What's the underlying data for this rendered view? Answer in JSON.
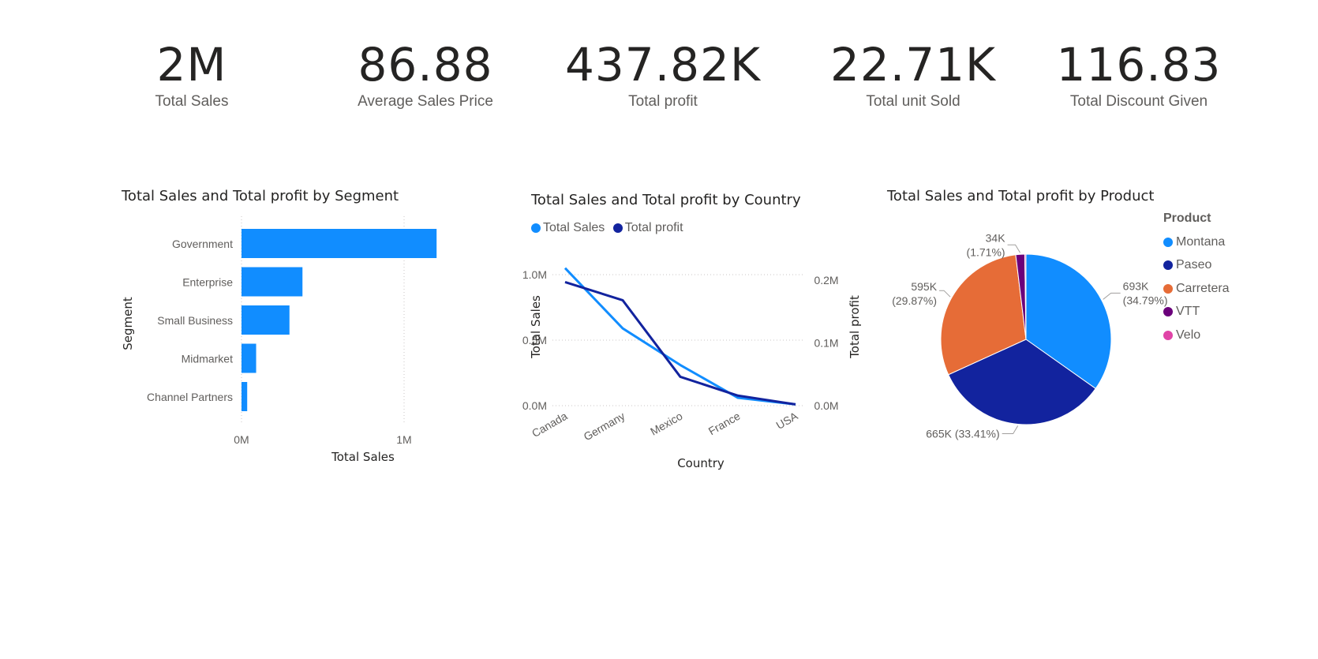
{
  "kpis": [
    {
      "value": "2M",
      "label": "Total Sales"
    },
    {
      "value": "86.88",
      "label": "Average Sales Price"
    },
    {
      "value": "437.82K",
      "label": "Total profit"
    },
    {
      "value": "22.71K",
      "label": "Total unit Sold"
    },
    {
      "value": "116.83",
      "label": "Total Discount Given"
    }
  ],
  "colors": {
    "total_sales": "#118dff",
    "total_profit": "#12239e",
    "Montana": "#118dff",
    "Paseo": "#12239e",
    "Carretera": "#e66c37",
    "VTT": "#6b007b",
    "Velo": "#e044a7"
  },
  "chart_data": [
    {
      "type": "bar",
      "orientation": "horizontal",
      "title": "Total Sales and Total profit by Segment",
      "xlabel": "Total Sales",
      "ylabel": "Segment",
      "categories": [
        "Government",
        "Enterprise",
        "Small Business",
        "Midmarket",
        "Channel Partners"
      ],
      "values": [
        1200000,
        375000,
        295000,
        90000,
        35000
      ],
      "xlim": [
        0,
        1500000
      ],
      "xticks": [
        {
          "value": 0,
          "label": "0M"
        },
        {
          "value": 1000000,
          "label": "1M"
        }
      ],
      "grid": true
    },
    {
      "type": "line",
      "title": "Total Sales and Total profit by Country",
      "xlabel": "Country",
      "ylabel": "Total Sales",
      "y2label": "Total profit",
      "x": [
        "Canada",
        "Germany",
        "Mexico",
        "France",
        "USA"
      ],
      "series": [
        {
          "name": "Total Sales",
          "axis": "left",
          "values": [
            1050000,
            590000,
            310000,
            60000,
            10000
          ]
        },
        {
          "name": "Total profit",
          "axis": "right",
          "values": [
            0.197,
            0.168,
            0.046,
            0.016,
            0.002
          ]
        }
      ],
      "ylim": [
        0,
        1.0
      ],
      "yticks": [
        {
          "value": 0,
          "label": "0.0M"
        },
        {
          "value": 0.5,
          "label": "0.5M"
        },
        {
          "value": 1.0,
          "label": "1.0M"
        }
      ],
      "y2lim": [
        0,
        0.2
      ],
      "y2ticks": [
        {
          "value": 0,
          "label": "0.0M"
        },
        {
          "value": 0.1,
          "label": "0.1M"
        },
        {
          "value": 0.2,
          "label": "0.2M"
        }
      ],
      "legend": "top-left",
      "grid": true
    },
    {
      "type": "pie",
      "title": "Total Sales and Total profit by Product",
      "legend_title": "Product",
      "legend": "right",
      "slices": [
        {
          "name": "Montana",
          "percent": 34.79,
          "value_label": "693K",
          "pct_label": "(34.79%)"
        },
        {
          "name": "Paseo",
          "percent": 33.41,
          "value_label": "665K",
          "pct_label": "(33.41%)"
        },
        {
          "name": "Carretera",
          "percent": 29.87,
          "value_label": "595K",
          "pct_label": "(29.87%)"
        },
        {
          "name": "VTT",
          "percent": 1.71,
          "value_label": "34K",
          "pct_label": "(1.71%)"
        },
        {
          "name": "Velo",
          "percent": 0.22
        }
      ]
    }
  ]
}
